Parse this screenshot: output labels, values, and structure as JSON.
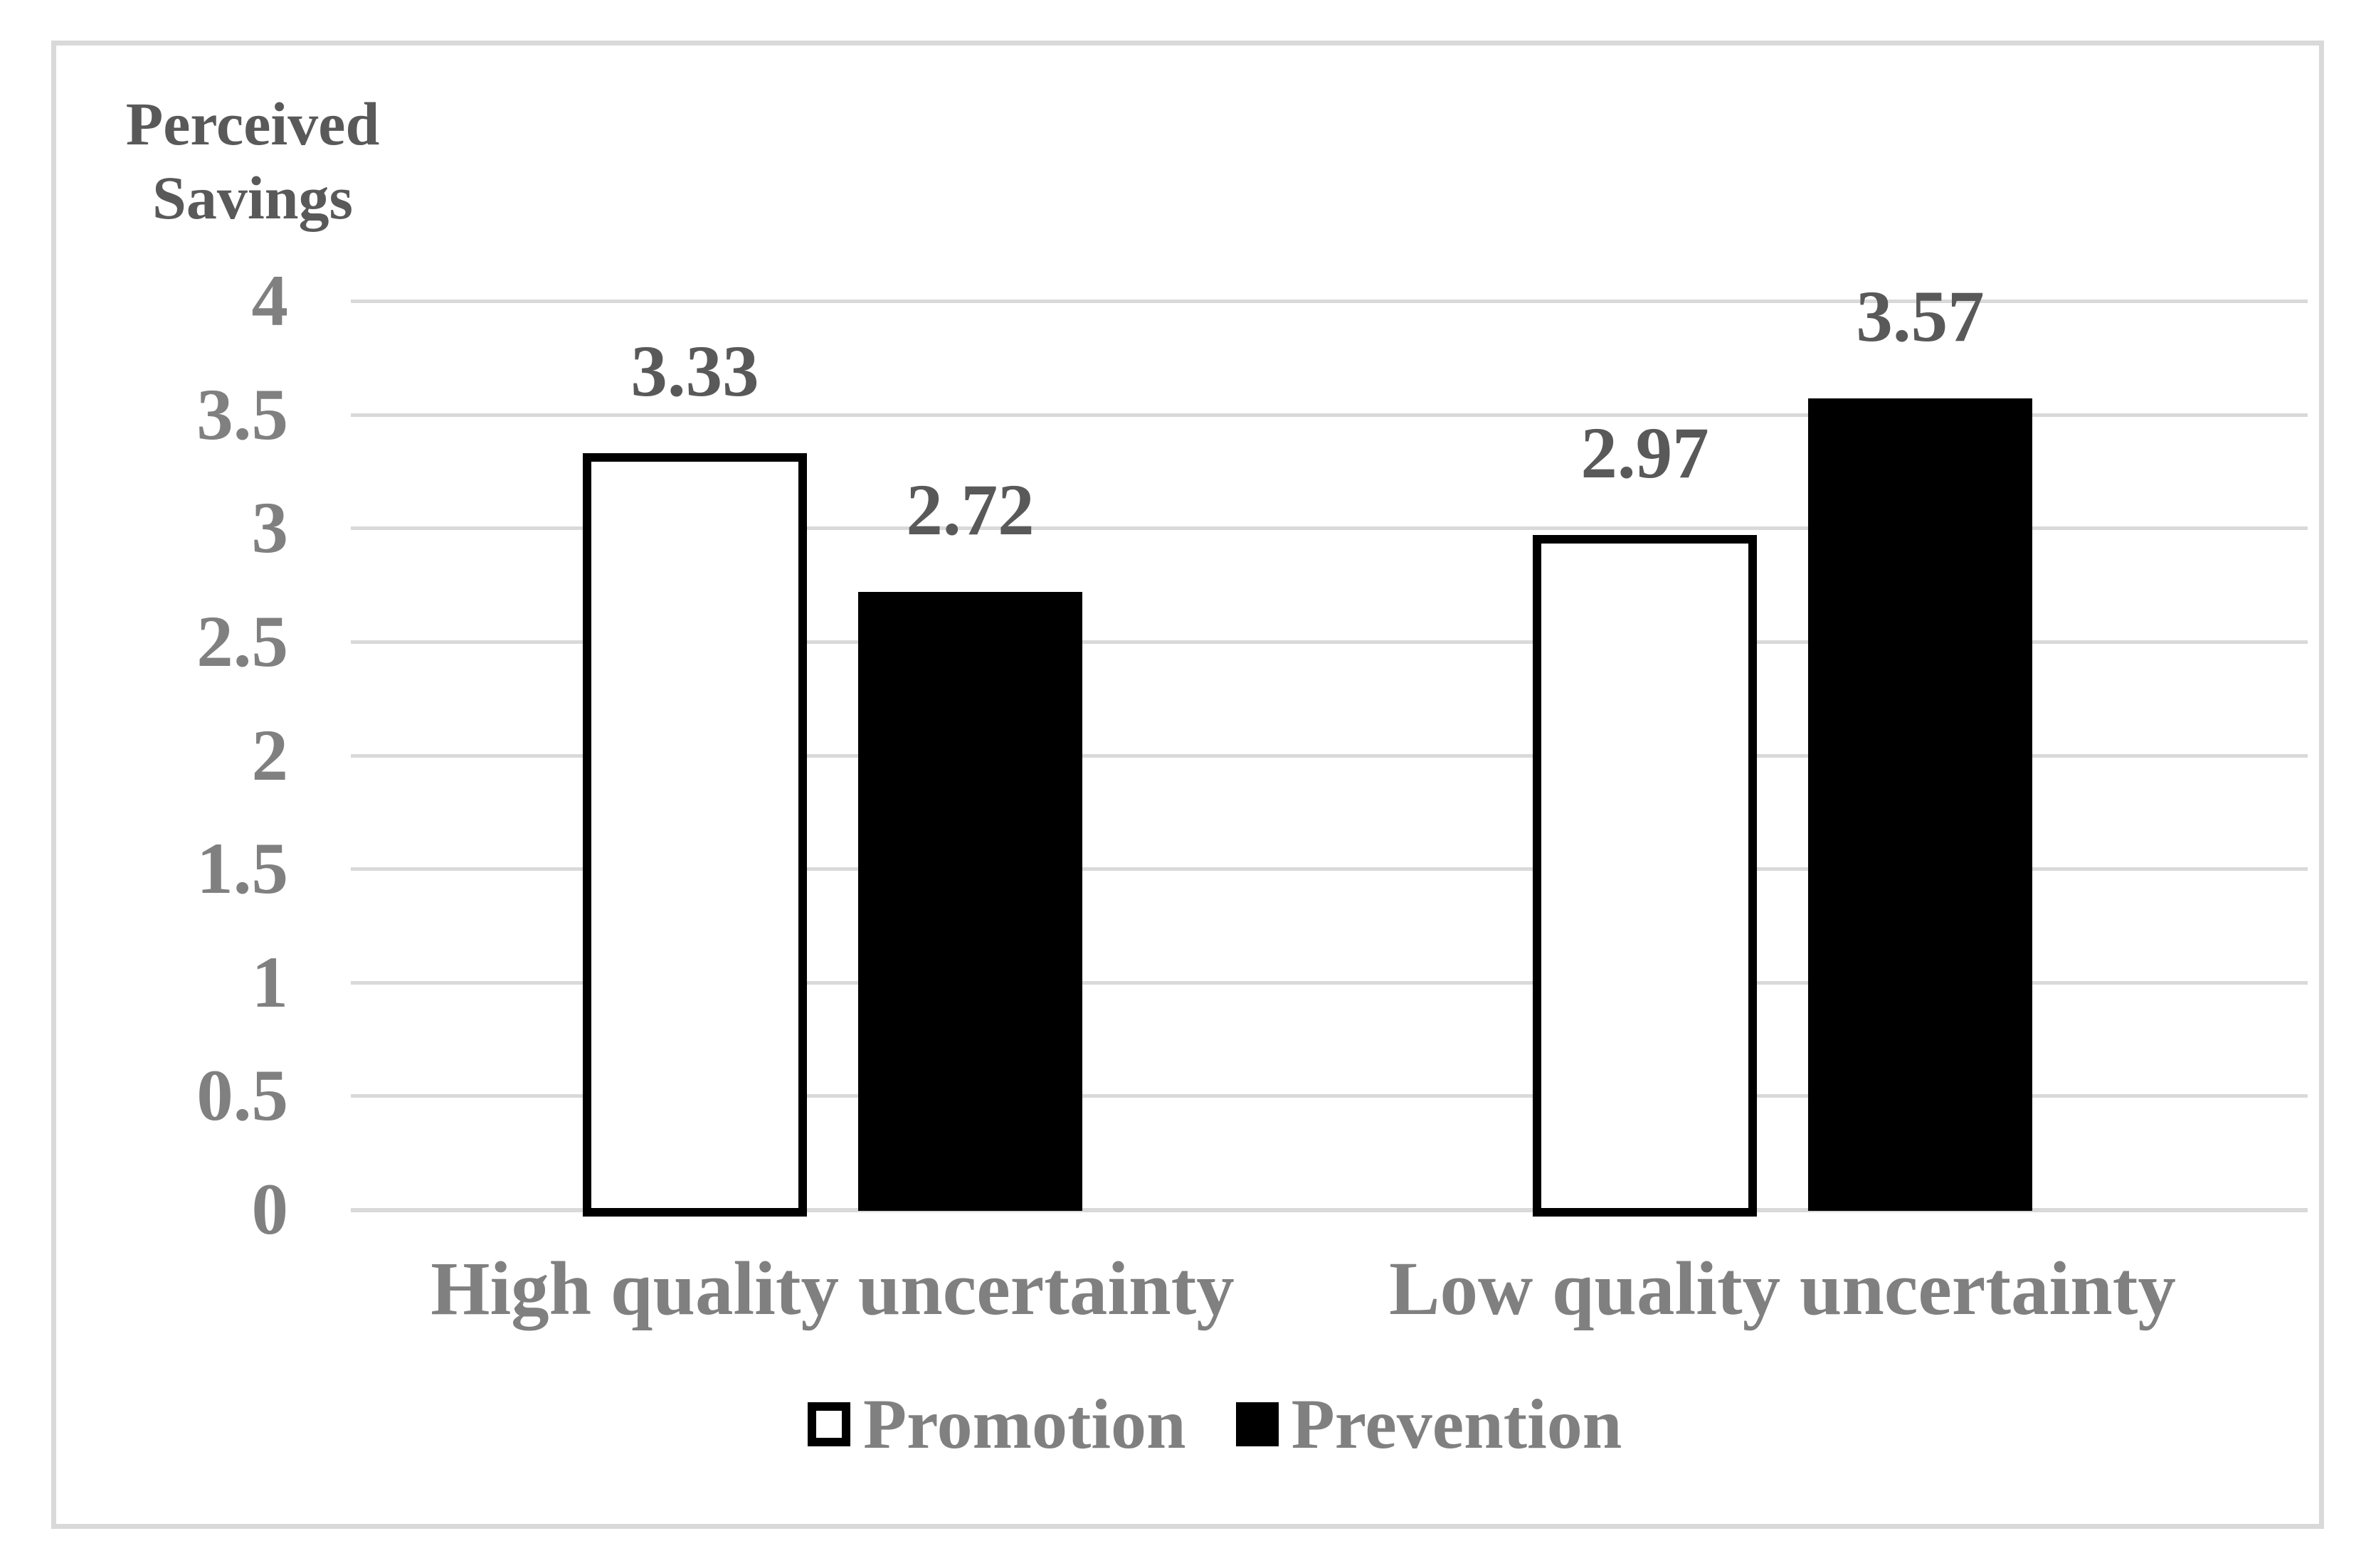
{
  "chart_data": {
    "type": "bar",
    "title": "Perceived Savings",
    "y_axis_title_lines": [
      "Perceived",
      "Savings"
    ],
    "categories": [
      "High quality uncertainty",
      "Low quality uncertainty"
    ],
    "series": [
      {
        "name": "Promotion",
        "values": [
          3.33,
          2.97
        ],
        "style": "promotion"
      },
      {
        "name": "Prevention",
        "values": [
          2.72,
          3.57
        ],
        "style": "prevention"
      }
    ],
    "data_labels": {
      "Promotion": [
        "3.33",
        "2.97"
      ],
      "Prevention": [
        "2.72",
        "3.57"
      ]
    },
    "yticks": [
      0,
      0.5,
      1,
      1.5,
      2,
      2.5,
      3,
      3.5,
      4
    ],
    "ytick_labels": [
      "0",
      "0.5",
      "1",
      "1.5",
      "2",
      "2.5",
      "3",
      "3.5",
      "4"
    ],
    "ylim": [
      0,
      4
    ],
    "grid": true,
    "legend_position": "bottom-center",
    "colors": {
      "frame_and_grid": "#d9d9d9",
      "title_and_data_labels": "#595959",
      "axis_and_legend_text": "#808080",
      "prevention_fill": "#000000",
      "promotion_fill": "#ffffff",
      "promotion_border": "#000000"
    }
  }
}
